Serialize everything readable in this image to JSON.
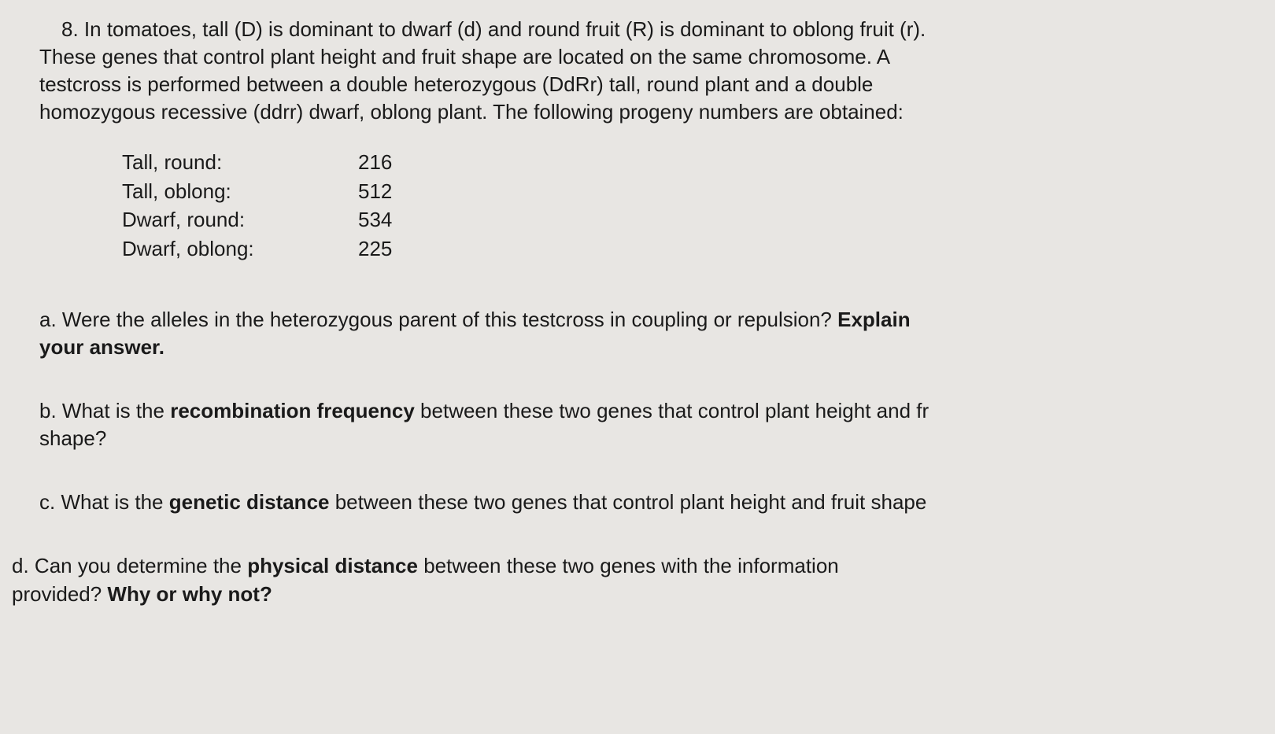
{
  "question": {
    "number": "8.",
    "text_line1": "In tomatoes, tall (D) is dominant to dwarf (d) and round fruit (R) is dominant to oblong fruit (r).",
    "text_line2": "These genes that control plant height and fruit shape are located on the same chromosome. A",
    "text_line3": "testcross is performed between a double heterozygous (DdRr) tall, round plant and a double",
    "text_line4": "homozygous recessive (ddrr) dwarf, oblong plant. The following progeny numbers are obtained:"
  },
  "data": {
    "rows": [
      {
        "label": "Tall, round:",
        "value": "216"
      },
      {
        "label": "Tall, oblong:",
        "value": "512"
      },
      {
        "label": "Dwarf, round:",
        "value": "534"
      },
      {
        "label": "Dwarf, oblong:",
        "value": "225"
      }
    ]
  },
  "subquestions": {
    "a": {
      "label": "a.",
      "text_part1": "Were the alleles in the heterozygous parent of this testcross in coupling or repulsion? ",
      "text_bold1": "Explain",
      "text_bold2": "your answer."
    },
    "b": {
      "label": "b.",
      "text_part1": "What is the ",
      "text_bold": "recombination frequency",
      "text_part2": " between these two genes that control plant height and fr",
      "text_part3": "shape?"
    },
    "c": {
      "label": "c.",
      "text_part1": "What is the ",
      "text_bold": "genetic distance",
      "text_part2": " between these two genes that control plant height and fruit shape"
    },
    "d": {
      "label": "d.",
      "text_part1": "Can you determine the ",
      "text_bold1": "physical distance",
      "text_part2": " between these two genes with the information",
      "text_part3": "provided? ",
      "text_bold2": "Why or why not?"
    }
  },
  "styling": {
    "background_color": "#e8e6e3",
    "text_color": "#1a1a1a",
    "font_family": "Arial, Helvetica, sans-serif",
    "font_size": 26,
    "line_height": 1.35
  }
}
